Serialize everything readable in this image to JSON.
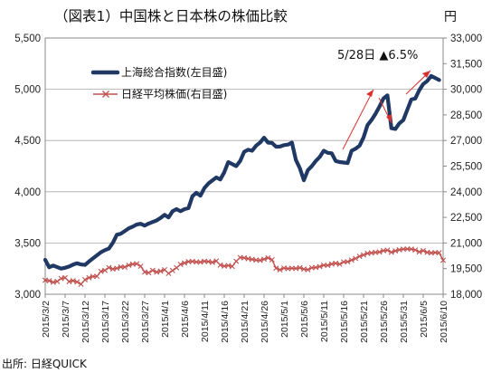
{
  "header": {
    "title": "（図表1）中国株と日本株の株価比較",
    "right_unit": "円",
    "source": "出所: 日経QUICK"
  },
  "chart_data": {
    "type": "line",
    "title": "（図表1）中国株と日本株の株価比較",
    "x_tick_labels": [
      "2015/3/2",
      "2015/3/7",
      "2015/3/12",
      "2015/3/17",
      "2015/3/22",
      "2015/3/27",
      "2015/4/1",
      "2015/4/6",
      "2015/4/11",
      "2015/4/16",
      "2015/4/21",
      "2015/4/26",
      "2015/5/1",
      "2015/5/6",
      "2015/5/11",
      "2015/5/16",
      "2015/5/21",
      "2015/5/26",
      "2015/5/31",
      "2015/6/5",
      "2015/6/10"
    ],
    "x_days": {
      "start": 0,
      "end": 100
    },
    "y_left": {
      "min": 3000,
      "max": 5500,
      "ticks": [
        "3,000",
        "3,500",
        "4,000",
        "4,500",
        "5,000",
        "5,500"
      ]
    },
    "y_right": {
      "min": 18000,
      "max": 33000,
      "ticks": [
        "18,000",
        "19,500",
        "21,000",
        "22,500",
        "24,000",
        "25,500",
        "27,000",
        "28,500",
        "30,000",
        "31,500",
        "33,000"
      ]
    },
    "grid": "horizontal",
    "legend_placement": "top-left",
    "series": [
      {
        "name": "上海総合指数(左目盛)",
        "axis": "left",
        "color": "#1f3864",
        "marker": "none",
        "points": [
          [
            0,
            3336
          ],
          [
            1,
            3263
          ],
          [
            2,
            3280
          ],
          [
            4,
            3250
          ],
          [
            5,
            3258
          ],
          [
            6,
            3270
          ],
          [
            7,
            3289
          ],
          [
            8,
            3302
          ],
          [
            9,
            3291
          ],
          [
            10,
            3286
          ],
          [
            11,
            3320
          ],
          [
            12,
            3350
          ],
          [
            13,
            3380
          ],
          [
            14,
            3410
          ],
          [
            15,
            3430
          ],
          [
            16,
            3445
          ],
          [
            17,
            3502
          ],
          [
            18,
            3580
          ],
          [
            19,
            3590
          ],
          [
            20,
            3617
          ],
          [
            21,
            3643
          ],
          [
            22,
            3660
          ],
          [
            23,
            3680
          ],
          [
            24,
            3687
          ],
          [
            25,
            3670
          ],
          [
            26,
            3690
          ],
          [
            27,
            3705
          ],
          [
            28,
            3720
          ],
          [
            29,
            3745
          ],
          [
            30,
            3775
          ],
          [
            31,
            3750
          ],
          [
            32,
            3810
          ],
          [
            33,
            3830
          ],
          [
            34,
            3810
          ],
          [
            35,
            3830
          ],
          [
            36,
            3840
          ],
          [
            37,
            3957
          ],
          [
            38,
            3990
          ],
          [
            39,
            3961
          ],
          [
            40,
            4035
          ],
          [
            41,
            4080
          ],
          [
            42,
            4110
          ],
          [
            43,
            4140
          ],
          [
            44,
            4120
          ],
          [
            45,
            4190
          ],
          [
            46,
            4290
          ],
          [
            47,
            4270
          ],
          [
            48,
            4250
          ],
          [
            49,
            4300
          ],
          [
            50,
            4390
          ],
          [
            51,
            4410
          ],
          [
            52,
            4400
          ],
          [
            53,
            4450
          ],
          [
            54,
            4480
          ],
          [
            55,
            4527
          ],
          [
            56,
            4480
          ],
          [
            57,
            4476
          ],
          [
            58,
            4440
          ],
          [
            59,
            4441
          ],
          [
            60,
            4455
          ],
          [
            61,
            4460
          ],
          [
            62,
            4480
          ],
          [
            63,
            4310
          ],
          [
            64,
            4229
          ],
          [
            65,
            4112
          ],
          [
            66,
            4210
          ],
          [
            67,
            4250
          ],
          [
            68,
            4300
          ],
          [
            69,
            4340
          ],
          [
            70,
            4400
          ],
          [
            71,
            4380
          ],
          [
            72,
            4375
          ],
          [
            73,
            4300
          ],
          [
            74,
            4290
          ],
          [
            75,
            4285
          ],
          [
            76,
            4280
          ],
          [
            77,
            4400
          ],
          [
            78,
            4420
          ],
          [
            79,
            4450
          ],
          [
            80,
            4530
          ],
          [
            81,
            4650
          ],
          [
            82,
            4700
          ],
          [
            83,
            4760
          ],
          [
            84,
            4830
          ],
          [
            85,
            4910
          ],
          [
            86,
            4941
          ],
          [
            87,
            4620
          ],
          [
            88,
            4612
          ],
          [
            89,
            4668
          ],
          [
            90,
            4700
          ],
          [
            91,
            4800
          ],
          [
            92,
            4900
          ],
          [
            93,
            4910
          ],
          [
            94,
            4990
          ],
          [
            95,
            5050
          ],
          [
            96,
            5080
          ],
          [
            97,
            5130
          ],
          [
            98,
            5110
          ],
          [
            99,
            5090
          ]
        ]
      },
      {
        "name": "日経平均株価(右目盛)",
        "axis": "right",
        "color": "#c0504d",
        "marker": "x",
        "points": [
          [
            0,
            18820
          ],
          [
            1,
            18790
          ],
          [
            2,
            18700
          ],
          [
            3,
            18750
          ],
          [
            4,
            18920
          ],
          [
            5,
            18970
          ],
          [
            6,
            18740
          ],
          [
            7,
            18790
          ],
          [
            8,
            18720
          ],
          [
            9,
            18590
          ],
          [
            10,
            18850
          ],
          [
            11,
            18970
          ],
          [
            12,
            19040
          ],
          [
            13,
            19050
          ],
          [
            14,
            19340
          ],
          [
            15,
            19400
          ],
          [
            16,
            19560
          ],
          [
            17,
            19480
          ],
          [
            18,
            19520
          ],
          [
            19,
            19600
          ],
          [
            20,
            19590
          ],
          [
            21,
            19700
          ],
          [
            22,
            19760
          ],
          [
            23,
            19780
          ],
          [
            24,
            19640
          ],
          [
            25,
            19300
          ],
          [
            26,
            19260
          ],
          [
            27,
            19400
          ],
          [
            28,
            19300
          ],
          [
            29,
            19350
          ],
          [
            30,
            19430
          ],
          [
            31,
            19220
          ],
          [
            32,
            19390
          ],
          [
            33,
            19550
          ],
          [
            34,
            19750
          ],
          [
            35,
            19830
          ],
          [
            36,
            19910
          ],
          [
            37,
            19920
          ],
          [
            38,
            19890
          ],
          [
            39,
            19880
          ],
          [
            40,
            19930
          ],
          [
            41,
            19910
          ],
          [
            42,
            19870
          ],
          [
            43,
            19950
          ],
          [
            44,
            19710
          ],
          [
            45,
            19650
          ],
          [
            46,
            19680
          ],
          [
            47,
            19630
          ],
          [
            48,
            19930
          ],
          [
            49,
            20150
          ],
          [
            50,
            20130
          ],
          [
            51,
            20080
          ],
          [
            52,
            20040
          ],
          [
            53,
            20000
          ],
          [
            54,
            19990
          ],
          [
            55,
            20050
          ],
          [
            56,
            20130
          ],
          [
            57,
            20020
          ],
          [
            58,
            19520
          ],
          [
            59,
            19430
          ],
          [
            60,
            19530
          ],
          [
            61,
            19500
          ],
          [
            62,
            19520
          ],
          [
            63,
            19510
          ],
          [
            64,
            19550
          ],
          [
            65,
            19470
          ],
          [
            66,
            19440
          ],
          [
            67,
            19550
          ],
          [
            68,
            19570
          ],
          [
            69,
            19620
          ],
          [
            70,
            19700
          ],
          [
            71,
            19690
          ],
          [
            72,
            19770
          ],
          [
            73,
            19810
          ],
          [
            74,
            19760
          ],
          [
            75,
            19890
          ],
          [
            76,
            19900
          ],
          [
            77,
            20000
          ],
          [
            78,
            20090
          ],
          [
            79,
            20220
          ],
          [
            80,
            20300
          ],
          [
            81,
            20390
          ],
          [
            82,
            20420
          ],
          [
            83,
            20450
          ],
          [
            84,
            20470
          ],
          [
            85,
            20550
          ],
          [
            86,
            20580
          ],
          [
            87,
            20460
          ],
          [
            88,
            20540
          ],
          [
            89,
            20600
          ],
          [
            90,
            20640
          ],
          [
            91,
            20650
          ],
          [
            92,
            20640
          ],
          [
            93,
            20590
          ],
          [
            94,
            20480
          ],
          [
            95,
            20550
          ],
          [
            96,
            20450
          ],
          [
            97,
            20420
          ],
          [
            98,
            20440
          ],
          [
            99,
            20430
          ],
          [
            100,
            19990
          ]
        ]
      }
    ],
    "annotations": [
      {
        "text": "5/28日 ▲6.5%"
      }
    ]
  }
}
